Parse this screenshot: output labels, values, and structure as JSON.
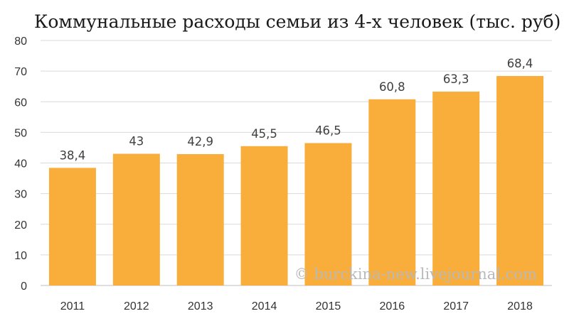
{
  "chart_data": {
    "type": "bar",
    "title": "Коммунальные расходы семьи из 4-х человек (тыс. руб)",
    "categories": [
      "2011",
      "2012",
      "2013",
      "2014",
      "2015",
      "2016",
      "2017",
      "2018"
    ],
    "values": [
      38.4,
      43,
      42.9,
      45.5,
      46.5,
      60.8,
      63.3,
      68.4
    ],
    "data_labels": [
      "38,4",
      "43",
      "42,9",
      "45,5",
      "46,5",
      "60,8",
      "63,3",
      "68,4"
    ],
    "xlabel": "",
    "ylabel": "",
    "ylim": [
      0,
      80
    ],
    "yticks": [
      "0",
      "10",
      "20",
      "30",
      "40",
      "50",
      "60",
      "70",
      "80"
    ],
    "grid": true,
    "legend": "none",
    "bar_color": "#F9AE3B",
    "grid_color": "#D9D9D9",
    "watermark": "© burckina-new.livejournal.com"
  }
}
